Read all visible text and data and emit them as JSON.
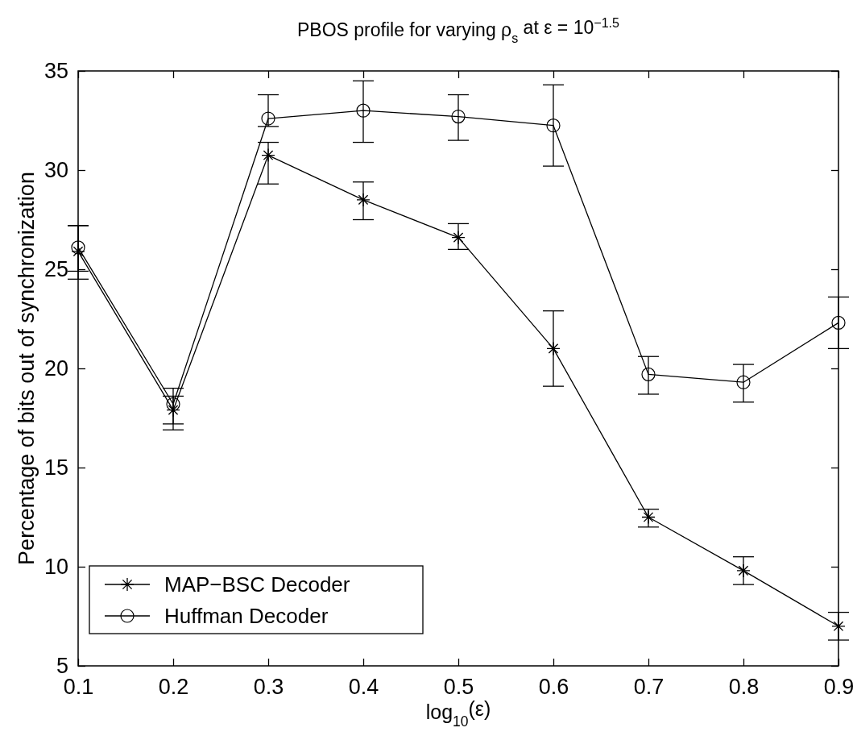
{
  "chart_data": {
    "type": "line",
    "title": "PBOS profile for varying ρ$_{s}$ at ε = 10$^{−1.5}$",
    "xlabel": "log$_{10}$(ε)",
    "ylabel": "Percentage of bits out of synchronization",
    "x": [
      0.1,
      0.2,
      0.3,
      0.4,
      0.5,
      0.6,
      0.7,
      0.8,
      0.9
    ],
    "xlim": [
      0.1,
      0.9
    ],
    "xticks": [
      0.1,
      0.2,
      0.3,
      0.4,
      0.5,
      0.6,
      0.7,
      0.8,
      0.9
    ],
    "ylim": [
      5,
      35
    ],
    "yticks": [
      5,
      10,
      15,
      20,
      25,
      30,
      35
    ],
    "grid": false,
    "legend": "bottom left",
    "line_style": "solid",
    "series": [
      {
        "name": "MAP−BSC Decoder",
        "color": "#000000",
        "marker": "cross",
        "values": [
          25.9,
          17.9,
          30.75,
          28.5,
          26.6,
          21.0,
          12.5,
          9.8,
          7.0
        ],
        "errors": [
          [
            24.5,
            27.2
          ],
          [
            16.9,
            18.6
          ],
          [
            29.3,
            31.4
          ],
          [
            27.5,
            29.4
          ],
          [
            26.0,
            27.3
          ],
          [
            19.1,
            22.9
          ],
          [
            12.0,
            12.9
          ],
          [
            9.1,
            10.5
          ],
          [
            6.3,
            7.7
          ]
        ]
      },
      {
        "name": "Huffman Decoder",
        "color": "#000000",
        "marker": "circle",
        "values": [
          26.1,
          18.2,
          32.6,
          33.0,
          32.7,
          32.25,
          19.7,
          19.3,
          22.3
        ],
        "errors": [
          [
            24.9,
            27.2
          ],
          [
            17.2,
            19.0
          ],
          [
            32.2,
            33.8
          ],
          [
            31.4,
            34.5
          ],
          [
            31.5,
            33.8
          ],
          [
            30.2,
            34.3
          ],
          [
            18.7,
            20.6
          ],
          [
            18.3,
            20.2
          ],
          [
            21.0,
            23.6
          ]
        ]
      }
    ]
  }
}
